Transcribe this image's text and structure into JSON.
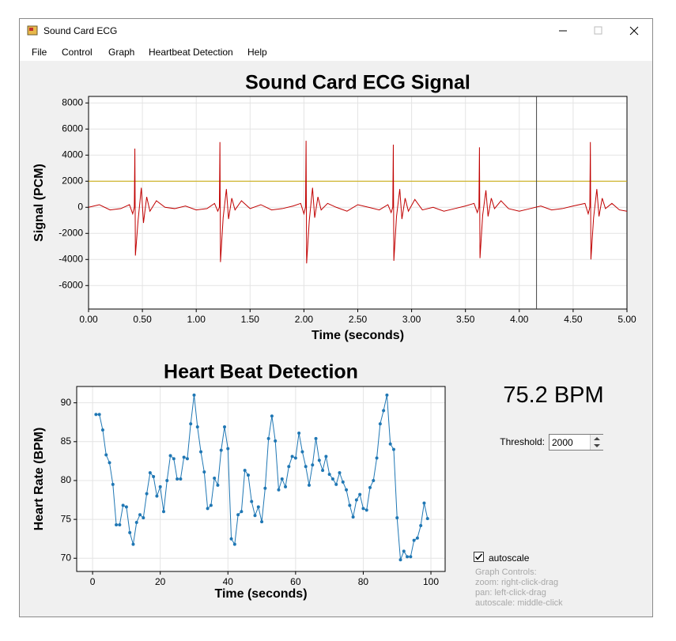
{
  "window": {
    "title": "Sound Card ECG"
  },
  "menu": [
    "File",
    "Control",
    "Graph",
    "Heartbeat Detection",
    "Help"
  ],
  "chart_data": [
    {
      "type": "line",
      "title": "Sound Card ECG Signal",
      "x_label": "Time (seconds)",
      "y_label": "Signal (PCM)",
      "x": [
        0,
        0.1,
        0.2,
        0.3,
        0.38,
        0.41,
        0.425,
        0.43,
        0.435,
        0.46,
        0.49,
        0.51,
        0.54,
        0.57,
        0.63,
        0.71,
        0.8,
        0.9,
        1.0,
        1.1,
        1.17,
        1.2,
        1.215,
        1.22,
        1.225,
        1.25,
        1.28,
        1.3,
        1.33,
        1.36,
        1.42,
        1.5,
        1.6,
        1.7,
        1.8,
        1.9,
        1.97,
        2.0,
        2.015,
        2.02,
        2.025,
        2.05,
        2.08,
        2.1,
        2.13,
        2.16,
        2.22,
        2.3,
        2.4,
        2.5,
        2.6,
        2.7,
        2.78,
        2.81,
        2.825,
        2.83,
        2.835,
        2.86,
        2.89,
        2.91,
        2.94,
        2.97,
        3.03,
        3.1,
        3.2,
        3.3,
        3.4,
        3.5,
        3.58,
        3.61,
        3.625,
        3.63,
        3.635,
        3.66,
        3.69,
        3.71,
        3.74,
        3.77,
        3.83,
        3.9,
        4.0,
        4.1,
        4.2,
        4.3,
        4.4,
        4.5,
        4.61,
        4.64,
        4.655,
        4.66,
        4.665,
        4.69,
        4.72,
        4.74,
        4.77,
        4.8,
        4.86,
        4.93,
        5.0
      ],
      "values": [
        0,
        200,
        -200,
        -100,
        200,
        -500,
        0,
        4500,
        -3700,
        -1000,
        1500,
        -1200,
        800,
        -300,
        500,
        0,
        -100,
        100,
        -200,
        -100,
        300,
        -300,
        0,
        5000,
        -4200,
        -800,
        1400,
        -900,
        700,
        -200,
        500,
        -100,
        200,
        -200,
        -100,
        100,
        300,
        -500,
        0,
        5100,
        -4300,
        -1000,
        1500,
        -800,
        800,
        -200,
        300,
        0,
        -300,
        200,
        0,
        -200,
        200,
        -400,
        0,
        4800,
        -4100,
        -700,
        1400,
        -900,
        700,
        -300,
        600,
        -200,
        0,
        -300,
        -100,
        100,
        300,
        -400,
        0,
        4600,
        -3900,
        -600,
        1300,
        -700,
        700,
        -100,
        500,
        -100,
        -300,
        -100,
        100,
        -200,
        -100,
        100,
        300,
        -500,
        0,
        5000,
        -4000,
        -800,
        1400,
        -700,
        700,
        -100,
        300,
        -200,
        -300
      ],
      "color": "#c00000",
      "markers": false,
      "xlim": [
        0,
        5
      ],
      "ylim": [
        -7800,
        8500
      ],
      "xticks": [
        {
          "value": 0,
          "label": "0.00"
        },
        {
          "value": 0.5,
          "label": "0.50"
        },
        {
          "value": 1,
          "label": "1.00"
        },
        {
          "value": 1.5,
          "label": "1.50"
        },
        {
          "value": 2,
          "label": "2.00"
        },
        {
          "value": 2.5,
          "label": "2.50"
        },
        {
          "value": 3,
          "label": "3.00"
        },
        {
          "value": 3.5,
          "label": "3.50"
        },
        {
          "value": 4,
          "label": "4.00"
        },
        {
          "value": 4.5,
          "label": "4.50"
        },
        {
          "value": 5,
          "label": "5.00"
        }
      ],
      "yticks": [
        -6000,
        -4000,
        -2000,
        0,
        2000,
        4000,
        6000,
        8000
      ],
      "grid": true,
      "hline": {
        "value": 2000,
        "color": "#c8a800"
      },
      "vline": {
        "value": 4.16,
        "color": "#444444"
      }
    },
    {
      "type": "line",
      "title": "Heart Beat Detection",
      "x_label": "Time (seconds)",
      "y_label": "Heart Rate (BPM)",
      "x": [
        1,
        2,
        3,
        4,
        5,
        6,
        7,
        8,
        9,
        10,
        11,
        12,
        13,
        14,
        15,
        16,
        17,
        18,
        19,
        20,
        21,
        22,
        23,
        24,
        25,
        26,
        27,
        28,
        29,
        30,
        31,
        32,
        33,
        34,
        35,
        36,
        37,
        38,
        39,
        40,
        41,
        42,
        43,
        44,
        45,
        46,
        47,
        48,
        49,
        50,
        51,
        52,
        53,
        54,
        55,
        56,
        57,
        58,
        59,
        60,
        61,
        62,
        63,
        64,
        65,
        66,
        67,
        68,
        69,
        70,
        71,
        72,
        73,
        74,
        75,
        76,
        77,
        78,
        79,
        80,
        81,
        82,
        83,
        84,
        85,
        86,
        87,
        88,
        89,
        90,
        91,
        92,
        93,
        94,
        95,
        96,
        97,
        98,
        99
      ],
      "values": [
        88.5,
        88.5,
        86.5,
        83.3,
        82.3,
        79.5,
        74.3,
        74.3,
        76.8,
        76.6,
        73.3,
        71.8,
        74.6,
        75.6,
        75.2,
        78.3,
        81.0,
        80.5,
        78.0,
        79.2,
        76.0,
        80.0,
        83.2,
        82.8,
        80.2,
        80.2,
        83.0,
        82.8,
        87.3,
        91.0,
        86.9,
        83.7,
        81.1,
        76.4,
        76.8,
        80.3,
        79.4,
        83.9,
        86.9,
        84.1,
        72.5,
        71.8,
        75.6,
        76.0,
        81.3,
        80.7,
        77.3,
        75.5,
        76.6,
        74.7,
        79.0,
        85.4,
        88.3,
        85.1,
        78.8,
        80.2,
        79.2,
        81.8,
        83.1,
        82.9,
        86.1,
        83.7,
        81.8,
        79.4,
        82.0,
        85.4,
        82.6,
        81.3,
        83.1,
        80.8,
        80.2,
        79.5,
        81.0,
        79.8,
        78.8,
        76.8,
        75.3,
        77.5,
        78.2,
        76.4,
        76.2,
        79.1,
        80.0,
        82.9,
        87.3,
        89.0,
        91.0,
        84.7,
        84.0,
        75.2,
        69.8,
        70.9,
        70.2,
        70.2,
        72.3,
        72.6,
        74.2,
        77.1,
        75.1
      ],
      "color": "#1f77b4",
      "markers": true,
      "xlim": [
        -4.7,
        104.2
      ],
      "ylim": [
        68.3,
        92.1
      ],
      "xticks": [
        0,
        20,
        40,
        60,
        80,
        100
      ],
      "yticks": [
        70,
        75,
        80,
        85,
        90
      ],
      "grid": true
    }
  ],
  "panel": {
    "bpm": "75.2 BPM",
    "threshold_label": "Threshold:",
    "threshold_value": "2000",
    "autoscale": "autoscale",
    "autoscale_checked": true,
    "help": [
      "Graph Controls:",
      "zoom: right-click-drag",
      "pan: left-click-drag",
      "autoscale: middle-click"
    ]
  }
}
